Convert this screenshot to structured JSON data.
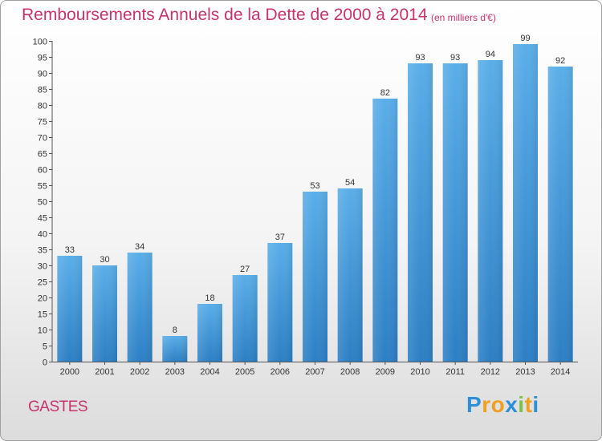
{
  "chart_data": {
    "type": "bar",
    "title": "Remboursements Annuels de la Dette de 2000 à 2014",
    "subtitle": "(en milliers d'€)",
    "categories": [
      "2000",
      "2001",
      "2002",
      "2003",
      "2004",
      "2005",
      "2006",
      "2007",
      "2008",
      "2009",
      "2010",
      "2011",
      "2012",
      "2013",
      "2014"
    ],
    "values": [
      33,
      30,
      34,
      8,
      18,
      27,
      37,
      53,
      54,
      82,
      93,
      93,
      94,
      99,
      92
    ],
    "ylim": [
      0,
      100
    ],
    "ytick_step": 5,
    "xlabel": "",
    "ylabel": "",
    "grid": false,
    "bar_color": "#3d93d8"
  },
  "footer": {
    "commune": "GASTES",
    "logo": {
      "p": "P",
      "r": "r",
      "o": "o",
      "x": "x",
      "i1": "i",
      "t": "t",
      "i2": "i"
    }
  }
}
